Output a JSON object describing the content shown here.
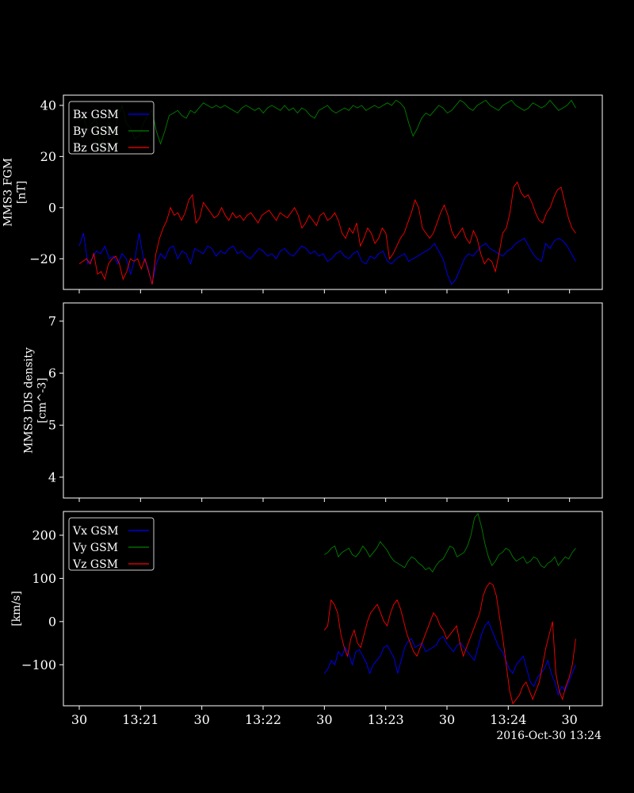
{
  "colors": {
    "background": "#000000",
    "foreground": "#ffffff",
    "x": "#0000ff",
    "y": "#008000",
    "z": "#ff0000"
  },
  "time_axis": {
    "range_seconds": [
      0,
      260
    ],
    "tick_labels": [
      "30",
      "13:21",
      "30",
      "13:22",
      "30",
      "13:23",
      "30",
      "13:24",
      "30"
    ],
    "tick_seconds": [
      0,
      30,
      60,
      90,
      120,
      150,
      180,
      210,
      240
    ],
    "stamp": "2016-Oct-30 13:24"
  },
  "chart_data": [
    {
      "type": "line",
      "ylabel_lines": [
        "MMS3 FGM",
        "[nT]"
      ],
      "ylim": [
        -32,
        44
      ],
      "yticks": [
        -20,
        0,
        20,
        40
      ],
      "ytick_labels": [
        "−20",
        "0",
        "20",
        "40"
      ],
      "legend": "upper-left",
      "series": [
        {
          "name": "Bx GSM",
          "color": "#0000ff",
          "t0": 0,
          "t1": 243,
          "values": [
            -15,
            -10,
            -22,
            -20,
            -17,
            -18,
            -15,
            -20,
            -19,
            -22,
            -18,
            -20,
            -26,
            -20,
            -10,
            -20,
            -23,
            -30,
            -22,
            -18,
            -20,
            -16,
            -15,
            -20,
            -17,
            -18,
            -22,
            -16,
            -17,
            -18,
            -15,
            -16,
            -19,
            -17,
            -18,
            -16,
            -15,
            -18,
            -17,
            -19,
            -20,
            -18,
            -16,
            -17,
            -19,
            -18,
            -20,
            -17,
            -16,
            -18,
            -19,
            -17,
            -15,
            -16,
            -18,
            -17,
            -19,
            -18,
            -21,
            -20,
            -18,
            -17,
            -19,
            -20,
            -18,
            -17,
            -21,
            -22,
            -19,
            -20,
            -18,
            -17,
            -21,
            -22,
            -20,
            -19,
            -18,
            -21,
            -20,
            -19,
            -18,
            -17,
            -16,
            -14,
            -17,
            -20,
            -26,
            -30,
            -28,
            -24,
            -20,
            -18,
            -19,
            -17,
            -15,
            -14,
            -16,
            -17,
            -18,
            -19,
            -17,
            -16,
            -14,
            -13,
            -12,
            -15,
            -18,
            -20,
            -21,
            -14,
            -16,
            -13,
            -12,
            -13,
            -15,
            -18,
            -21
          ]
        },
        {
          "name": "By GSM",
          "color": "#008000",
          "t0": 0,
          "t1": 243,
          "values": [
            34,
            35,
            30,
            33,
            35,
            22,
            30,
            33,
            28,
            35,
            40,
            33,
            31,
            27,
            28,
            33,
            36,
            38,
            30,
            25,
            30,
            36,
            37,
            38,
            36,
            35,
            38,
            37,
            39,
            41,
            40,
            39,
            40,
            39,
            40,
            39,
            38,
            37,
            39,
            40,
            39,
            38,
            39,
            37,
            39,
            40,
            39,
            38,
            40,
            38,
            39,
            37,
            39,
            38,
            36,
            35,
            38,
            39,
            40,
            38,
            37,
            38,
            39,
            38,
            40,
            39,
            40,
            38,
            39,
            40,
            39,
            40,
            41,
            40,
            42,
            41,
            39,
            33,
            28,
            31,
            35,
            37,
            36,
            38,
            40,
            39,
            37,
            38,
            40,
            42,
            41,
            39,
            38,
            40,
            41,
            42,
            40,
            39,
            38,
            40,
            41,
            42,
            40,
            39,
            38,
            39,
            41,
            40,
            39,
            40,
            42,
            40,
            38,
            39,
            40,
            42,
            39
          ]
        },
        {
          "name": "Bz GSM",
          "color": "#ff0000",
          "t0": 0,
          "t1": 243,
          "values": [
            -22,
            -21,
            -20,
            -22,
            -18,
            -26,
            -25,
            -28,
            -22,
            -20,
            -19,
            -22,
            -28,
            -25,
            -20,
            -21,
            -20,
            -24,
            -20,
            -25,
            -30,
            -18,
            -12,
            -8,
            -5,
            0,
            -3,
            -2,
            -5,
            -2,
            3,
            5,
            -6,
            -4,
            2,
            0,
            -2,
            -4,
            -3,
            0,
            -3,
            -5,
            -2,
            -4,
            -3,
            -5,
            -3,
            -2,
            -4,
            -6,
            -3,
            -2,
            -1,
            -3,
            -5,
            -2,
            -3,
            -4,
            -2,
            0,
            -3,
            -8,
            -6,
            -3,
            -5,
            -7,
            -3,
            -2,
            -5,
            -4,
            -2,
            -5,
            -10,
            -12,
            -8,
            -10,
            -6,
            -15,
            -12,
            -8,
            -10,
            -14,
            -12,
            -8,
            -10,
            -20,
            -18,
            -15,
            -12,
            -10,
            -6,
            -2,
            3,
            0,
            -8,
            -10,
            -12,
            -10,
            -6,
            -2,
            1,
            -3,
            -9,
            -12,
            -10,
            -8,
            -12,
            -14,
            -9,
            -12,
            -18,
            -22,
            -20,
            -21,
            -25,
            -18,
            -10,
            -8,
            -2,
            8,
            10,
            6,
            4,
            5,
            2,
            -2,
            -5,
            -6,
            -2,
            0,
            4,
            7,
            8,
            2,
            -4,
            -8,
            -10
          ]
        }
      ]
    },
    {
      "type": "line",
      "ylabel_lines": [
        "MMS3 DIS density",
        "[cm^-3]"
      ],
      "ylim": [
        3.6,
        7.35
      ],
      "yticks": [
        4,
        5,
        6,
        7
      ],
      "ytick_labels": [
        "4",
        "5",
        "6",
        "7"
      ],
      "series": []
    },
    {
      "type": "line",
      "ylabel_lines": [
        "[km/s]"
      ],
      "ylim": [
        -195,
        255
      ],
      "yticks": [
        -100,
        0,
        100,
        200
      ],
      "ytick_labels": [
        "−100",
        "0",
        "100",
        "200"
      ],
      "legend": "upper-left",
      "series": [
        {
          "name": "Vx GSM",
          "color": "#0000ff",
          "t0": 120,
          "t1": 243,
          "values": [
            -120,
            -110,
            -90,
            -100,
            -70,
            -80,
            -60,
            -75,
            -100,
            -70,
            -65,
            -80,
            -95,
            -120,
            -100,
            -90,
            -80,
            -60,
            -55,
            -70,
            -85,
            -120,
            -90,
            -60,
            -45,
            -40,
            -60,
            -55,
            -50,
            -70,
            -65,
            -60,
            -55,
            -40,
            -35,
            -50,
            -60,
            -70,
            -55,
            -50,
            -60,
            -70,
            -80,
            -90,
            -60,
            -30,
            -10,
            0,
            -20,
            -40,
            -60,
            -70,
            -90,
            -110,
            -120,
            -100,
            -90,
            -80,
            -110,
            -140,
            -150,
            -130,
            -120,
            -110,
            -90,
            -120,
            -140,
            -170,
            -150,
            -160,
            -140,
            -120,
            -100
          ]
        },
        {
          "name": "Vy GSM",
          "color": "#008000",
          "t0": 120,
          "t1": 243,
          "values": [
            155,
            160,
            170,
            175,
            150,
            160,
            165,
            170,
            155,
            150,
            160,
            175,
            165,
            150,
            160,
            170,
            185,
            175,
            165,
            150,
            140,
            135,
            130,
            125,
            140,
            150,
            145,
            135,
            130,
            120,
            125,
            115,
            130,
            140,
            145,
            160,
            175,
            170,
            150,
            155,
            160,
            175,
            200,
            240,
            250,
            220,
            180,
            150,
            130,
            140,
            155,
            160,
            170,
            165,
            150,
            140,
            145,
            150,
            135,
            140,
            150,
            145,
            130,
            125,
            135,
            140,
            150,
            130,
            140,
            150,
            145,
            160,
            170
          ]
        },
        {
          "name": "Vz GSM",
          "color": "#ff0000",
          "t0": 120,
          "t1": 243,
          "values": [
            -20,
            -10,
            50,
            40,
            20,
            -30,
            -60,
            -80,
            -40,
            -20,
            -50,
            -60,
            -30,
            0,
            20,
            30,
            40,
            20,
            0,
            -10,
            20,
            40,
            50,
            30,
            0,
            -30,
            -50,
            -70,
            -80,
            -60,
            -40,
            -20,
            0,
            20,
            10,
            -10,
            -20,
            -40,
            -30,
            -20,
            -10,
            -50,
            -80,
            -60,
            -40,
            -20,
            0,
            20,
            60,
            80,
            90,
            85,
            60,
            10,
            -40,
            -100,
            -160,
            -190,
            -180,
            -170,
            -150,
            -140,
            -160,
            -180,
            -160,
            -140,
            -100,
            -60,
            -30,
            0,
            -120,
            -160,
            -180,
            -150,
            -130,
            -100,
            -40
          ]
        }
      ]
    }
  ]
}
